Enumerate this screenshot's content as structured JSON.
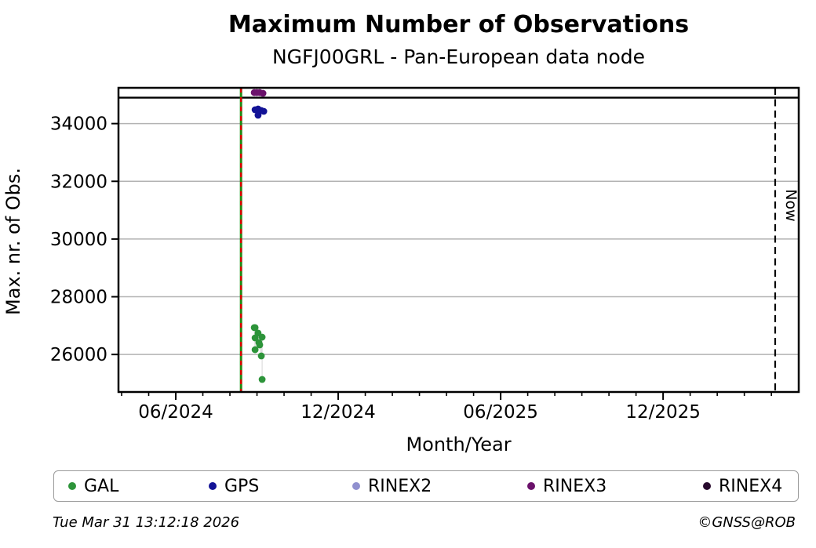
{
  "figure": {
    "title": "Maximum Number of Observations",
    "subtitle": "NGFJ00GRL - Pan-European data node",
    "footer_left": "Tue Mar 31 13:12:18 2026",
    "footer_right": "©GNSS@ROB"
  },
  "chart_data": {
    "type": "scatter",
    "title": "Maximum Number of Observations",
    "subtitle": "NGFJ00GRL - Pan-European data node",
    "xlabel": "Month/Year",
    "ylabel": "Max. nr. of Obs.",
    "x_axis": {
      "unit": "months_after_2024-06-01",
      "lim": [
        -2.116,
        23.01
      ],
      "major_ticks": [
        {
          "m": 0,
          "label": "06/2024"
        },
        {
          "m": 6,
          "label": "12/2024"
        },
        {
          "m": 12,
          "label": "06/2025"
        },
        {
          "m": 18,
          "label": "12/2025"
        }
      ],
      "minor_tick_every_months": 1
    },
    "y_axis": {
      "lim": [
        24700,
        35240
      ],
      "ticks": [
        26000,
        28000,
        30000,
        32000,
        34000
      ],
      "grid": true
    },
    "series": [
      {
        "name": "GAL",
        "color": "#2d943a",
        "points": [
          {
            "date": "2024-08-28",
            "m": 2.9,
            "value": 26930
          },
          {
            "date": "2024-08-29",
            "m": 2.93,
            "value": 26165
          },
          {
            "date": "2024-08-29",
            "m": 2.93,
            "value": 26575
          },
          {
            "date": "2024-08-29",
            "m": 2.93,
            "value": 26930
          },
          {
            "date": "2024-09-01",
            "m": 3.04,
            "value": 26740
          },
          {
            "date": "2024-09-02",
            "m": 3.07,
            "value": 26410
          },
          {
            "date": "2024-09-03",
            "m": 3.1,
            "value": 26330
          },
          {
            "date": "2024-09-05",
            "m": 3.16,
            "value": 25950
          },
          {
            "date": "2024-09-06",
            "m": 3.19,
            "value": 26600
          },
          {
            "date": "2024-09-06",
            "m": 3.19,
            "value": 25135
          }
        ]
      },
      {
        "name": "GPS",
        "color": "#131396",
        "points": [
          {
            "date": "2024-08-29",
            "m": 2.93,
            "value": 34480
          },
          {
            "date": "2024-09-01",
            "m": 3.04,
            "value": 34505
          },
          {
            "date": "2024-09-01",
            "m": 3.04,
            "value": 34290
          },
          {
            "date": "2024-09-05",
            "m": 3.16,
            "value": 34450
          },
          {
            "date": "2024-09-08",
            "m": 3.25,
            "value": 34425
          }
        ]
      },
      {
        "name": "RINEX2",
        "color": "#9090cf",
        "points": []
      },
      {
        "name": "RINEX3",
        "color": "#6b116b",
        "points": [
          {
            "date": "2024-08-28",
            "m": 2.9,
            "value": 35075
          },
          {
            "date": "2024-08-31",
            "m": 2.99,
            "value": 35075
          },
          {
            "date": "2024-09-03",
            "m": 3.1,
            "value": 35075
          },
          {
            "date": "2024-09-07",
            "m": 3.22,
            "value": 35050
          }
        ]
      },
      {
        "name": "RINEX4",
        "color": "#280a2d",
        "points": []
      }
    ],
    "annotations": {
      "max_line": {
        "value": 34900,
        "color": "#000000",
        "style": "solid"
      },
      "event_line": {
        "m": 2.41,
        "date": "2024-08-13",
        "line_color": "#1f8a14",
        "dash_color": "#dd0000",
        "style": "solid-with-dashed-overlay"
      },
      "now_line": {
        "m": 22.14,
        "label": "Now",
        "color": "#000000",
        "style": "dashed"
      }
    },
    "legend": {
      "position": "bottom",
      "labels": [
        "GAL",
        "GPS",
        "RINEX2",
        "RINEX3",
        "RINEX4"
      ]
    }
  }
}
